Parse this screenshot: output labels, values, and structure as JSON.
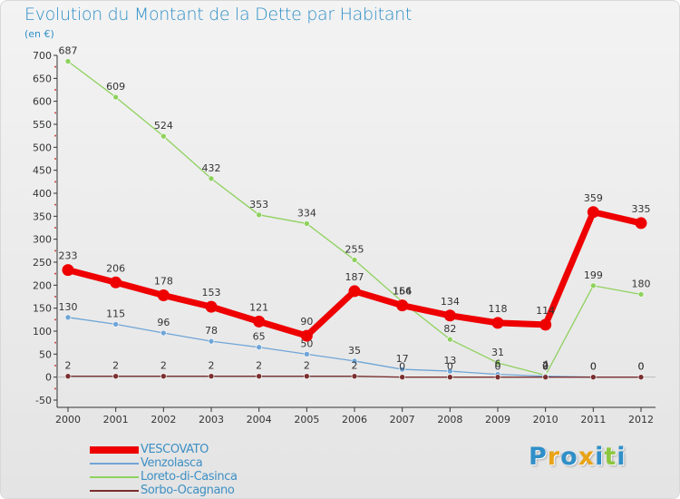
{
  "title": "Evolution du Montant de la Dette par Habitant",
  "subtitle": "(en €)",
  "logo": {
    "letters": [
      "P",
      "r",
      "o",
      "x",
      "i",
      "t",
      "i"
    ],
    "colors": [
      "#2f8fc8",
      "#e8a317",
      "#2f8fc8",
      "#e8a317",
      "#2f8fc8",
      "#8cc63f",
      "#2f8fc8"
    ]
  },
  "chart_data": {
    "type": "line",
    "title": "Evolution du Montant de la Dette par Habitant",
    "subtitle": "(en €)",
    "xlabel": "",
    "ylabel": "",
    "ylim": [
      -50,
      700
    ],
    "yticks": [
      -50,
      0,
      50,
      100,
      150,
      200,
      250,
      300,
      350,
      400,
      450,
      500,
      550,
      600,
      650,
      700
    ],
    "categories": [
      "2000",
      "2001",
      "2002",
      "2003",
      "2004",
      "2005",
      "2006",
      "2007",
      "2008",
      "2009",
      "2010",
      "2011",
      "2012"
    ],
    "grid": false,
    "legend_position": "bottom-left",
    "series": [
      {
        "name": "Loreto-di-Casinca",
        "color": "#8fd15e",
        "values": [
          687,
          609,
          524,
          432,
          353,
          334,
          255,
          164,
          82,
          31,
          4,
          199,
          180
        ],
        "labels": [
          "687",
          "609",
          "524",
          "432",
          "353",
          "334",
          "255",
          "164",
          "82",
          "31",
          "4",
          "199",
          "180"
        ]
      },
      {
        "name": "Venzolasca",
        "color": "#6fa5d6",
        "values": [
          130,
          115,
          96,
          78,
          65,
          50,
          35,
          17,
          13,
          6,
          2,
          0,
          0
        ],
        "labels": [
          "130",
          "115",
          "96",
          "78",
          "65",
          "50",
          "35",
          "17",
          "13",
          "6",
          "2",
          "0",
          "0"
        ]
      },
      {
        "name": "Sorbo-Ocagnano",
        "color": "#7a2e2e",
        "values": [
          2,
          2,
          2,
          2,
          2,
          2,
          2,
          0,
          0,
          0,
          0,
          0,
          0
        ],
        "labels": [
          "2",
          "2",
          "2",
          "2",
          "2",
          "2",
          "2",
          "0",
          "0",
          "0",
          "0",
          "0",
          "0"
        ]
      },
      {
        "name": "VESCOVATO",
        "color": "#ee0000",
        "values": [
          233,
          206,
          178,
          153,
          121,
          90,
          187,
          156,
          134,
          118,
          114,
          359,
          335
        ],
        "labels": [
          "233",
          "206",
          "178",
          "153",
          "121",
          "90",
          "187",
          "156",
          "134",
          "118",
          "114",
          "359",
          "335"
        ]
      }
    ],
    "legend": [
      "VESCOVATO",
      "Venzolasca",
      "Loreto-di-Casinca",
      "Sorbo-Ocagnano"
    ]
  }
}
